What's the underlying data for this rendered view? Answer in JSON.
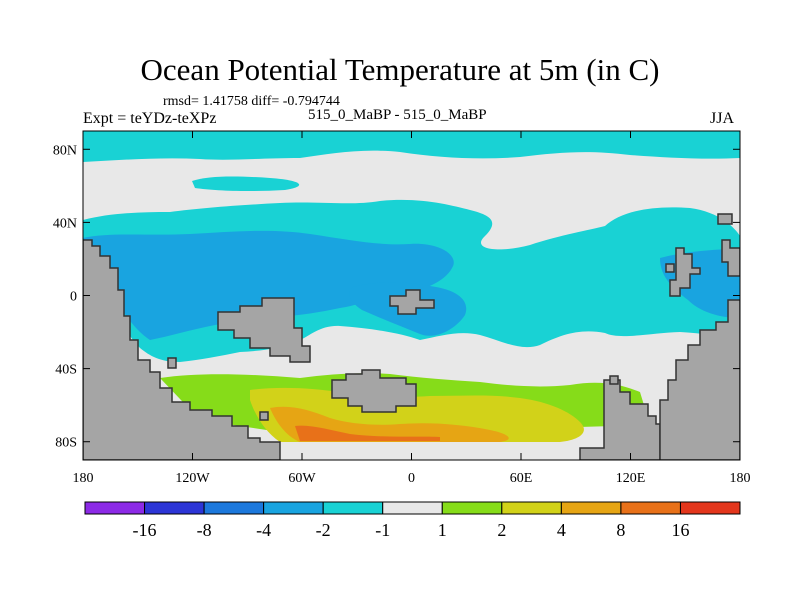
{
  "chart_data": {
    "type": "filled-contour-map",
    "title": "Ocean Potential Temperature at 5m (in C)",
    "stats_label": "rmsd= 1.41758 diff= -0.794744",
    "left_label": "Expt = teYDz-teXPz",
    "center_label": "515_0_MaBP - 515_0_MaBP",
    "right_label": "JJA",
    "x_axis": {
      "range": [
        -180,
        180
      ],
      "ticks": [
        {
          "value": -180,
          "label": "180"
        },
        {
          "value": -120,
          "label": "120W"
        },
        {
          "value": -60,
          "label": "60W"
        },
        {
          "value": 0,
          "label": "0"
        },
        {
          "value": 60,
          "label": "60E"
        },
        {
          "value": 120,
          "label": "120E"
        },
        {
          "value": 180,
          "label": "180"
        }
      ]
    },
    "y_axis": {
      "range": [
        -90,
        90
      ],
      "ticks": [
        {
          "value": 80,
          "label": "80N"
        },
        {
          "value": 40,
          "label": "40N"
        },
        {
          "value": 0,
          "label": "0"
        },
        {
          "value": -40,
          "label": "40S"
        },
        {
          "value": -80,
          "label": "80S"
        }
      ]
    },
    "colorbar": {
      "colors": [
        "#8c2ae6",
        "#2c35d6",
        "#1c78dc",
        "#19a4e0",
        "#19d2d4",
        "#e8e8e8",
        "#86dc19",
        "#d2d219",
        "#e6a514",
        "#e87119",
        "#e3361c"
      ],
      "labels": [
        "-16",
        "-8",
        "-4",
        "-2",
        "-1",
        "1",
        "2",
        "4",
        "8",
        "16"
      ]
    },
    "land_color": "#a5a5a5"
  }
}
